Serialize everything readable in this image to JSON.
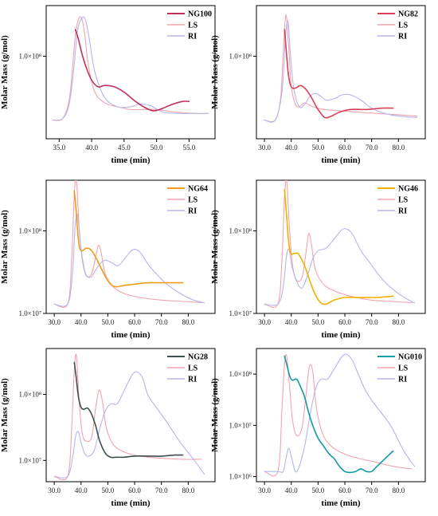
{
  "colors": {
    "ls": "#f4a3ad",
    "ri": "#b3b6ec",
    "axis": "#000000"
  },
  "chart_data": [
    {
      "type": "line",
      "xlabel": "time (min)",
      "ylabel": "Molar Mass (g/mol)",
      "xlim": [
        33,
        59
      ],
      "xticks": [
        "35.0",
        "40.0",
        "45.0",
        "50.0",
        "55.0"
      ],
      "xtick_values": [
        35,
        40,
        45,
        50,
        55
      ],
      "yticks": [
        "1.0×10⁸"
      ],
      "ytick_values": [
        0.62
      ],
      "series": [
        {
          "name": "NG100",
          "color": "#c0305a",
          "width": 1.6,
          "x": [
            37.5,
            38.0,
            38.5,
            39.2,
            40.0,
            41.0,
            42.0,
            43.5,
            45.0,
            46.5,
            48.0,
            49.5,
            51.0,
            52.5,
            54.0,
            55.0
          ],
          "y": [
            0.82,
            0.74,
            0.64,
            0.53,
            0.44,
            0.39,
            0.4,
            0.39,
            0.35,
            0.29,
            0.24,
            0.21,
            0.23,
            0.26,
            0.28,
            0.28
          ]
        },
        {
          "name": "LS",
          "color": "#f4a3ad",
          "width": 1.1,
          "x": [
            34.0,
            35.5,
            36.5,
            37.0,
            37.5,
            38.0,
            38.5,
            39.0,
            39.5,
            40.5,
            42.0,
            44.0,
            46.0,
            48.0,
            50.0,
            53.0,
            56.0,
            58.0
          ],
          "y": [
            0.14,
            0.15,
            0.28,
            0.5,
            0.78,
            0.9,
            0.9,
            0.76,
            0.55,
            0.35,
            0.27,
            0.24,
            0.22,
            0.22,
            0.22,
            0.2,
            0.19,
            0.19
          ]
        },
        {
          "name": "RI",
          "color": "#b3b6ec",
          "width": 1.1,
          "x": [
            34.0,
            35.5,
            36.5,
            37.2,
            37.8,
            38.4,
            39.0,
            39.6,
            40.5,
            42.0,
            44.0,
            46.0,
            47.5,
            49.0,
            51.0,
            54.0,
            58.0
          ],
          "y": [
            0.14,
            0.15,
            0.25,
            0.5,
            0.8,
            0.9,
            0.9,
            0.76,
            0.5,
            0.31,
            0.24,
            0.24,
            0.26,
            0.25,
            0.2,
            0.19,
            0.19
          ]
        }
      ]
    },
    {
      "type": "line",
      "xlabel": "time (min)",
      "ylabel": "Molar Mass (g/mol)",
      "xlim": [
        27,
        90
      ],
      "xticks": [
        "30.0",
        "40.0",
        "50.0",
        "60.0",
        "70.0",
        "80.0"
      ],
      "xtick_values": [
        30,
        40,
        50,
        60,
        70,
        80
      ],
      "yticks": [
        "1.0×10⁸"
      ],
      "ytick_values": [
        0.62
      ],
      "series": [
        {
          "name": "NG82",
          "color": "#d9405a",
          "width": 1.6,
          "x": [
            37.5,
            38.3,
            39.0,
            40.0,
            41.5,
            43.5,
            45.5,
            47.5,
            50.0,
            52.5,
            55.0,
            58.0,
            62.0,
            68.0,
            74.0,
            78.0
          ],
          "y": [
            0.82,
            0.62,
            0.47,
            0.39,
            0.38,
            0.4,
            0.37,
            0.31,
            0.22,
            0.16,
            0.17,
            0.2,
            0.22,
            0.22,
            0.23,
            0.23
          ]
        },
        {
          "name": "LS",
          "color": "#f4a3ad",
          "width": 1.1,
          "x": [
            30.0,
            34.0,
            36.0,
            37.0,
            38.0,
            39.0,
            40.0,
            41.5,
            43.0,
            45.0,
            48.0,
            52.0,
            58.0,
            65.0,
            72.0,
            80.0,
            87.0
          ],
          "y": [
            0.14,
            0.14,
            0.3,
            0.65,
            0.93,
            0.7,
            0.4,
            0.26,
            0.24,
            0.27,
            0.24,
            0.22,
            0.21,
            0.2,
            0.19,
            0.18,
            0.17
          ]
        },
        {
          "name": "RI",
          "color": "#b3b6ec",
          "width": 1.1,
          "x": [
            30.0,
            34.0,
            36.5,
            37.8,
            38.8,
            39.8,
            41.0,
            43.0,
            45.0,
            47.0,
            49.0,
            51.0,
            53.0,
            56.0,
            59.0,
            62.0,
            66.0,
            70.0,
            75.0,
            80.0,
            87.0
          ],
          "y": [
            0.14,
            0.14,
            0.35,
            0.75,
            0.88,
            0.6,
            0.37,
            0.24,
            0.26,
            0.32,
            0.34,
            0.32,
            0.29,
            0.3,
            0.33,
            0.33,
            0.29,
            0.23,
            0.19,
            0.17,
            0.16
          ]
        }
      ]
    },
    {
      "type": "line",
      "xlabel": "time (min)",
      "ylabel": "Molar Mass (g/mol)",
      "xlim": [
        27,
        90
      ],
      "xticks": [
        "30.0",
        "40.0",
        "50.0",
        "60.0",
        "70.0",
        "80.0"
      ],
      "xtick_values": [
        30,
        40,
        50,
        60,
        70,
        80
      ],
      "yticks": [
        "1.0×10⁸",
        "1.0×10⁷"
      ],
      "ytick_values": [
        0.62,
        0.0
      ],
      "series": [
        {
          "name": "NG64",
          "color": "#f29b1a",
          "width": 1.6,
          "x": [
            37.5,
            38.2,
            38.8,
            39.5,
            40.5,
            42.0,
            43.5,
            45.0,
            47.0,
            49.0,
            51.0,
            53.0,
            56.0,
            60.0,
            65.0,
            70.0,
            75.0,
            78.0
          ],
          "y": [
            0.92,
            0.77,
            0.6,
            0.49,
            0.47,
            0.49,
            0.48,
            0.44,
            0.36,
            0.28,
            0.22,
            0.2,
            0.21,
            0.22,
            0.23,
            0.23,
            0.23,
            0.23
          ]
        },
        {
          "name": "LS",
          "color": "#f4a3ad",
          "width": 1.1,
          "x": [
            30.0,
            35.0,
            36.5,
            37.5,
            38.3,
            39.3,
            40.5,
            42.0,
            44.0,
            45.5,
            46.5,
            47.5,
            49.0,
            52.0,
            56.0,
            62.0,
            70.0,
            78.0,
            85.0
          ],
          "y": [
            0.07,
            0.07,
            0.4,
            0.9,
            1.0,
            0.65,
            0.4,
            0.28,
            0.3,
            0.43,
            0.51,
            0.46,
            0.3,
            0.2,
            0.15,
            0.12,
            0.1,
            0.09,
            0.08
          ]
        },
        {
          "name": "RI",
          "color": "#b3b6ec",
          "width": 1.1,
          "x": [
            30.0,
            35.0,
            36.8,
            37.8,
            38.7,
            39.8,
            41.5,
            43.5,
            45.0,
            47.0,
            49.0,
            51.5,
            54.0,
            57.0,
            59.5,
            62.0,
            65.0,
            68.0,
            72.0,
            77.0,
            82.0,
            86.0
          ],
          "y": [
            0.07,
            0.07,
            0.3,
            0.65,
            0.74,
            0.52,
            0.31,
            0.27,
            0.31,
            0.37,
            0.4,
            0.38,
            0.36,
            0.43,
            0.48,
            0.46,
            0.37,
            0.3,
            0.22,
            0.15,
            0.1,
            0.08
          ]
        }
      ]
    },
    {
      "type": "line",
      "xlabel": "time (min)",
      "ylabel": "Molar Mass (g/mol)",
      "xlim": [
        27,
        90
      ],
      "xticks": [
        "30.0",
        "40.0",
        "50.0",
        "60.0",
        "70.0",
        "80.0"
      ],
      "xtick_values": [
        30,
        40,
        50,
        60,
        70,
        80
      ],
      "yticks": [
        "1.0×10⁸",
        "1.0×10⁷"
      ],
      "ytick_values": [
        0.62,
        0.0
      ],
      "series": [
        {
          "name": "NG46",
          "color": "#f2b100",
          "width": 1.6,
          "x": [
            37.5,
            38.2,
            39.0,
            39.8,
            41.0,
            42.5,
            44.0,
            45.5,
            47.0,
            49.0,
            51.0,
            53.0,
            56.0,
            60.0,
            65.0,
            72.0,
            78.0
          ],
          "y": [
            0.93,
            0.75,
            0.54,
            0.45,
            0.45,
            0.45,
            0.4,
            0.33,
            0.24,
            0.14,
            0.08,
            0.07,
            0.1,
            0.12,
            0.12,
            0.12,
            0.13
          ]
        },
        {
          "name": "LS",
          "color": "#f4a3ad",
          "width": 1.1,
          "x": [
            30.0,
            35.0,
            36.5,
            37.5,
            38.3,
            39.3,
            40.5,
            42.0,
            44.0,
            45.5,
            46.5,
            47.5,
            49.0,
            52.0,
            56.0,
            62.0,
            70.0,
            78.0,
            85.0
          ],
          "y": [
            0.07,
            0.07,
            0.4,
            0.88,
            1.0,
            0.65,
            0.36,
            0.25,
            0.27,
            0.46,
            0.6,
            0.52,
            0.33,
            0.22,
            0.17,
            0.13,
            0.1,
            0.09,
            0.08
          ]
        },
        {
          "name": "RI",
          "color": "#b3b6ec",
          "width": 1.1,
          "x": [
            30.0,
            35.0,
            37.0,
            38.2,
            39.2,
            40.2,
            42.0,
            44.0,
            46.0,
            48.0,
            50.0,
            53.0,
            56.0,
            59.0,
            61.0,
            63.0,
            66.0,
            69.0,
            73.0,
            78.0,
            83.0,
            86.0
          ],
          "y": [
            0.07,
            0.07,
            0.2,
            0.43,
            0.48,
            0.36,
            0.24,
            0.19,
            0.28,
            0.41,
            0.47,
            0.49,
            0.56,
            0.63,
            0.63,
            0.59,
            0.47,
            0.39,
            0.28,
            0.18,
            0.11,
            0.08
          ]
        }
      ]
    },
    {
      "type": "line",
      "xlabel": "time (min)",
      "ylabel": "Molar Mass (g/mol)",
      "xlim": [
        27,
        90
      ],
      "xticks": [
        "30.0",
        "40.0",
        "50.0",
        "60.0",
        "70.0",
        "80.0"
      ],
      "xtick_values": [
        30,
        40,
        50,
        60,
        70,
        80
      ],
      "yticks": [
        "1.0×10⁸",
        "1.0×10⁷"
      ],
      "ytick_values": [
        0.62,
        0.0
      ],
      "series": [
        {
          "name": "NG28",
          "color": "#3d4f4f",
          "width": 1.6,
          "x": [
            37.5,
            38.2,
            39.0,
            40.0,
            41.0,
            42.5,
            44.0,
            45.5,
            47.0,
            49.0,
            51.0,
            53.0,
            56.0,
            60.0,
            65.0,
            70.0,
            75.0,
            78.0
          ],
          "y": [
            0.92,
            0.78,
            0.6,
            0.5,
            0.48,
            0.49,
            0.43,
            0.32,
            0.18,
            0.07,
            0.03,
            0.03,
            0.03,
            0.04,
            0.04,
            0.04,
            0.05,
            0.05
          ]
        },
        {
          "name": "LS",
          "color": "#f4a3ad",
          "width": 1.1,
          "x": [
            30.0,
            35.0,
            36.5,
            37.5,
            38.3,
            39.3,
            40.5,
            42.0,
            44.0,
            45.5,
            46.8,
            48.0,
            49.5,
            52.0,
            56.0,
            62.0,
            70.0,
            78.0,
            85.0
          ],
          "y": [
            -0.15,
            -0.15,
            0.3,
            0.85,
            0.98,
            0.55,
            0.25,
            0.18,
            0.22,
            0.5,
            0.66,
            0.55,
            0.3,
            0.15,
            0.08,
            0.04,
            0.02,
            0.01,
            0.01
          ]
        },
        {
          "name": "RI",
          "color": "#b3b6ec",
          "width": 1.1,
          "x": [
            30.0,
            35.0,
            37.0,
            38.0,
            39.0,
            40.0,
            41.5,
            43.0,
            45.0,
            47.0,
            49.0,
            51.0,
            53.5,
            56.0,
            59.0,
            61.0,
            63.0,
            65.0,
            68.0,
            72.0,
            77.0,
            82.0,
            86.0
          ],
          "y": [
            -0.15,
            -0.15,
            0.05,
            0.23,
            0.27,
            0.17,
            0.06,
            0.04,
            0.1,
            0.3,
            0.46,
            0.53,
            0.53,
            0.65,
            0.8,
            0.83,
            0.77,
            0.61,
            0.5,
            0.36,
            0.17,
            0.01,
            -0.13
          ]
        }
      ]
    },
    {
      "type": "line",
      "xlabel": "time (min)",
      "ylabel": "Molar Mass (g/mol)",
      "xlim": [
        27,
        90
      ],
      "xticks": [
        "30.0",
        "40.0",
        "50.0",
        "60.0",
        "70.0",
        "80.0"
      ],
      "xtick_values": [
        30,
        40,
        50,
        60,
        70,
        80
      ],
      "yticks": [
        "1.0×10⁸",
        "1.0×10⁷",
        "1.0×10⁶"
      ],
      "ytick_values": [
        8,
        7,
        6
      ],
      "series": [
        {
          "name": "NG010",
          "color": "#0f9aa7",
          "width": 1.6,
          "x": [
            37.5,
            38.5,
            39.5,
            40.5,
            42.0,
            43.5,
            45.0,
            46.5,
            48.0,
            50.0,
            52.0,
            54.0,
            56.0,
            58.0,
            60.0,
            62.0,
            64.0,
            66.0,
            68.0,
            70.0,
            72.0,
            75.0,
            78.0
          ],
          "y": [
            8.35,
            8.15,
            7.95,
            7.88,
            7.9,
            7.75,
            7.55,
            7.25,
            7.0,
            6.75,
            6.6,
            6.45,
            6.35,
            6.2,
            6.1,
            6.08,
            6.1,
            6.15,
            6.1,
            6.1,
            6.2,
            6.35,
            6.5
          ]
        },
        {
          "name": "LS",
          "color": "#f4a3ad",
          "width": 1.1,
          "x": [
            30.0,
            35.0,
            36.5,
            37.5,
            38.3,
            39.3,
            40.5,
            42.0,
            44.0,
            45.5,
            46.8,
            48.0,
            49.5,
            52.0,
            56.0,
            62.0,
            70.0,
            78.0,
            85.0
          ],
          "y": [
            6.1,
            6.1,
            7.3,
            8.2,
            8.35,
            7.8,
            7.1,
            6.8,
            6.95,
            7.6,
            8.15,
            8.05,
            7.3,
            6.8,
            6.55,
            6.4,
            6.3,
            6.2,
            6.15
          ]
        },
        {
          "name": "RI",
          "color": "#b3b6ec",
          "width": 1.1,
          "x": [
            30.0,
            35.0,
            37.0,
            38.0,
            39.0,
            40.0,
            41.5,
            43.0,
            45.0,
            47.0,
            49.0,
            51.0,
            53.5,
            56.0,
            59.0,
            61.0,
            63.0,
            65.0,
            68.0,
            72.0,
            77.0,
            82.0,
            86.0
          ],
          "y": [
            6.1,
            6.1,
            6.1,
            6.35,
            6.55,
            6.4,
            6.1,
            6.2,
            6.6,
            7.2,
            7.7,
            7.9,
            7.9,
            8.1,
            8.35,
            8.38,
            8.25,
            8.0,
            7.65,
            7.35,
            7.0,
            6.5,
            6.2
          ]
        }
      ]
    }
  ]
}
